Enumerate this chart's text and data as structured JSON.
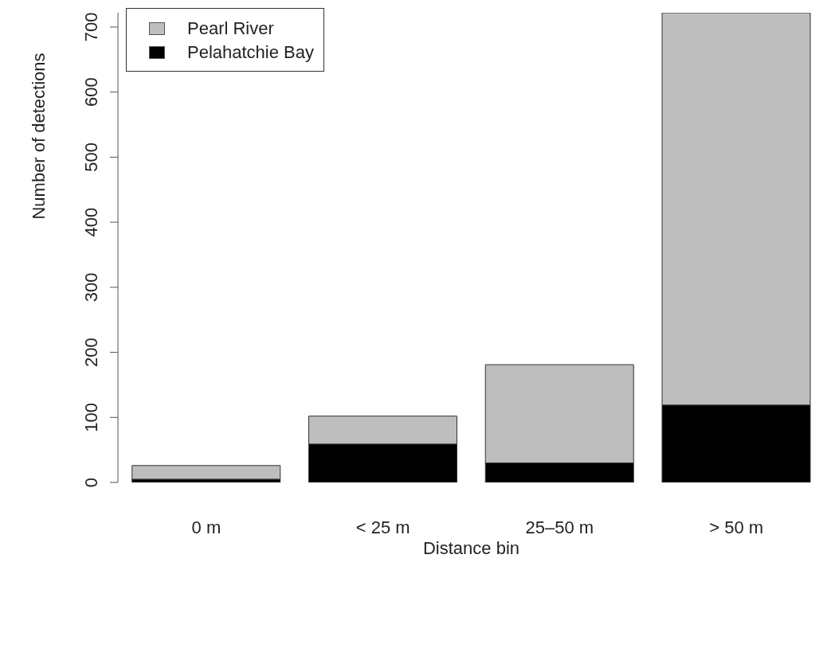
{
  "chart_data": {
    "type": "bar",
    "xlabel": "Distance bin",
    "ylabel": "Number of detections",
    "categories": [
      "0 m",
      "< 25 m",
      "25–50 m",
      "> 50 m"
    ],
    "stacked": true,
    "series": [
      {
        "name": "Pelahatchie Bay",
        "color": "#000000",
        "values": [
          5,
          59,
          30,
          119
        ]
      },
      {
        "name": "Pearl River",
        "color": "#bebebe",
        "values": [
          21,
          43,
          151,
          603
        ]
      }
    ],
    "ylim": [
      0,
      722
    ],
    "yticks": [
      0,
      100,
      200,
      300,
      400,
      500,
      600,
      700
    ],
    "grid": false,
    "legend": "top left"
  }
}
